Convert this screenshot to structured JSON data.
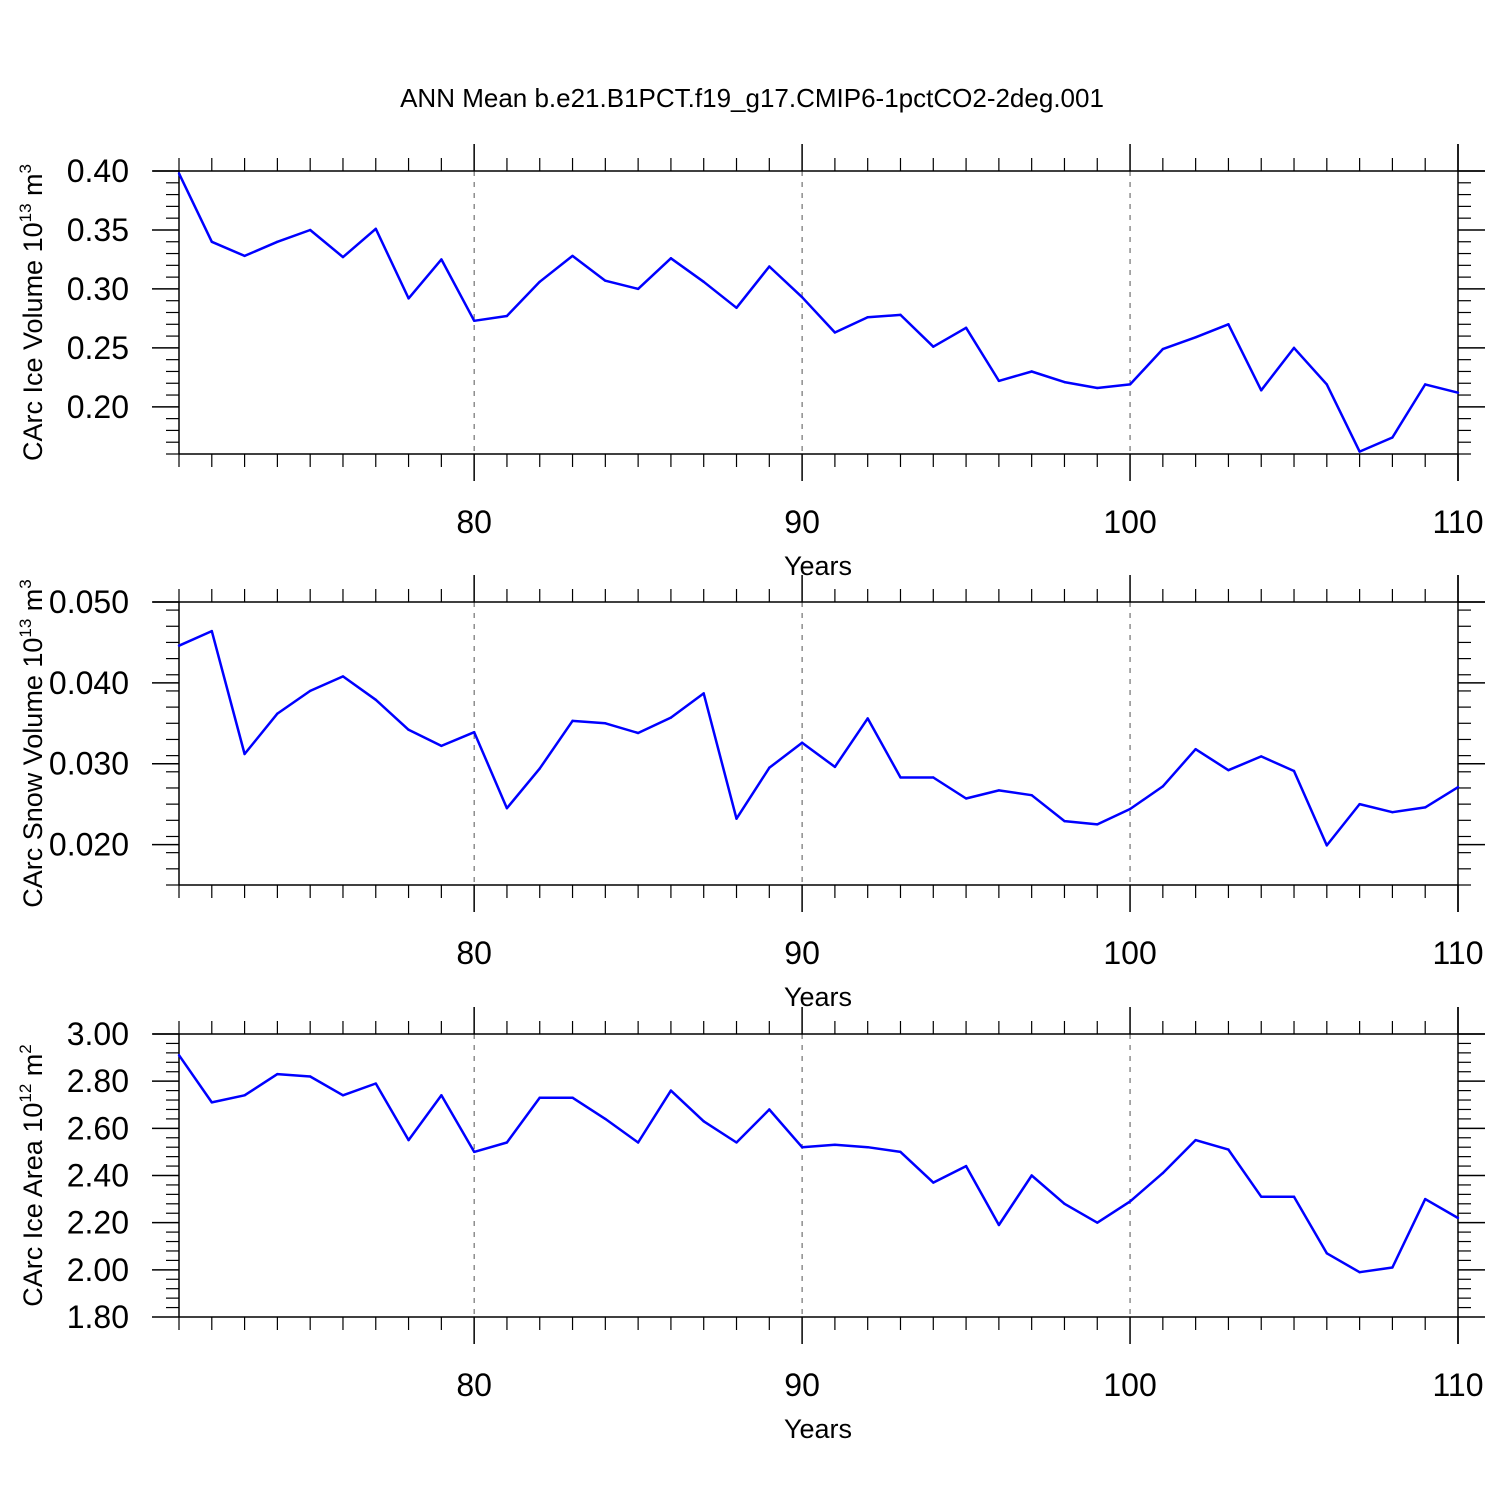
{
  "title": "ANN Mean b.e21.B1PCT.f19_g17.CMIP6-1pctCO2-2deg.001",
  "colors": {
    "line": "#0000ff",
    "axis": "#000000",
    "grid": "#555555"
  },
  "chart_data": [
    {
      "type": "line",
      "ylabel": {
        "text": "CArc Ice Volume 10",
        "exp": "13",
        "unit": " m",
        "unit_exp": "3"
      },
      "xlabel": "Years",
      "xlim": [
        71,
        110
      ],
      "ylim": [
        0.16,
        0.4
      ],
      "yticks": [
        0.2,
        0.25,
        0.3,
        0.35,
        0.4
      ],
      "ytick_labels": [
        "0.20",
        "0.25",
        "0.30",
        "0.35",
        "0.40"
      ],
      "xticks": [
        80,
        90,
        100,
        110
      ],
      "xtick_labels": [
        "80",
        "90",
        "100",
        "110"
      ],
      "grid_x": "dashed at major x ticks",
      "x": [
        71,
        72,
        73,
        74,
        75,
        76,
        77,
        78,
        79,
        80,
        81,
        82,
        83,
        84,
        85,
        86,
        87,
        88,
        89,
        90,
        91,
        92,
        93,
        94,
        95,
        96,
        97,
        98,
        99,
        100,
        101,
        102,
        103,
        104,
        105,
        106,
        107,
        108,
        109,
        110
      ],
      "y": [
        0.398,
        0.34,
        0.328,
        0.34,
        0.35,
        0.327,
        0.351,
        0.292,
        0.325,
        0.273,
        0.277,
        0.306,
        0.328,
        0.307,
        0.3,
        0.326,
        0.306,
        0.284,
        0.319,
        0.293,
        0.263,
        0.276,
        0.278,
        0.251,
        0.267,
        0.222,
        0.23,
        0.221,
        0.216,
        0.219,
        0.249,
        0.259,
        0.27,
        0.214,
        0.25,
        0.219,
        0.162,
        0.174,
        0.219,
        0.212
      ]
    },
    {
      "type": "line",
      "ylabel": {
        "text": "CArc Snow Volume 10",
        "exp": "13",
        "unit": " m",
        "unit_exp": "3"
      },
      "xlabel": "Years",
      "xlim": [
        71,
        110
      ],
      "ylim": [
        0.015,
        0.05
      ],
      "yticks": [
        0.02,
        0.03,
        0.04,
        0.05
      ],
      "ytick_labels": [
        "0.020",
        "0.030",
        "0.040",
        "0.050"
      ],
      "xticks": [
        80,
        90,
        100,
        110
      ],
      "xtick_labels": [
        "80",
        "90",
        "100",
        "110"
      ],
      "grid_x": "dashed at major x ticks",
      "x": [
        71,
        72,
        73,
        74,
        75,
        76,
        77,
        78,
        79,
        80,
        81,
        82,
        83,
        84,
        85,
        86,
        87,
        88,
        89,
        90,
        91,
        92,
        93,
        94,
        95,
        96,
        97,
        98,
        99,
        100,
        101,
        102,
        103,
        104,
        105,
        106,
        107,
        108,
        109,
        110
      ],
      "y": [
        0.0446,
        0.0464,
        0.0312,
        0.0362,
        0.039,
        0.0408,
        0.0379,
        0.0342,
        0.0322,
        0.0339,
        0.0245,
        0.0294,
        0.0353,
        0.035,
        0.0338,
        0.0357,
        0.0387,
        0.0232,
        0.0295,
        0.0326,
        0.0296,
        0.0356,
        0.0283,
        0.0283,
        0.0257,
        0.0267,
        0.0261,
        0.0229,
        0.0225,
        0.0244,
        0.0272,
        0.0318,
        0.0292,
        0.0309,
        0.0291,
        0.0199,
        0.025,
        0.024,
        0.0246,
        0.0271
      ]
    },
    {
      "type": "line",
      "ylabel": {
        "text": "CArc Ice Area 10",
        "exp": "12",
        "unit": " m",
        "unit_exp": "2"
      },
      "xlabel": "Years",
      "xlim": [
        71,
        110
      ],
      "ylim": [
        1.8,
        3.0
      ],
      "yticks": [
        1.8,
        2.0,
        2.2,
        2.4,
        2.6,
        2.8,
        3.0
      ],
      "ytick_labels": [
        "1.80",
        "2.00",
        "2.20",
        "2.40",
        "2.60",
        "2.80",
        "3.00"
      ],
      "xticks": [
        80,
        90,
        100,
        110
      ],
      "xtick_labels": [
        "80",
        "90",
        "100",
        "110"
      ],
      "grid_x": "dashed at major x ticks",
      "x": [
        71,
        72,
        73,
        74,
        75,
        76,
        77,
        78,
        79,
        80,
        81,
        82,
        83,
        84,
        85,
        86,
        87,
        88,
        89,
        90,
        91,
        92,
        93,
        94,
        95,
        96,
        97,
        98,
        99,
        100,
        101,
        102,
        103,
        104,
        105,
        106,
        107,
        108,
        109,
        110
      ],
      "y": [
        2.91,
        2.71,
        2.74,
        2.83,
        2.82,
        2.74,
        2.79,
        2.55,
        2.74,
        2.5,
        2.54,
        2.73,
        2.73,
        2.64,
        2.54,
        2.76,
        2.63,
        2.54,
        2.68,
        2.52,
        2.53,
        2.52,
        2.5,
        2.37,
        2.44,
        2.19,
        2.4,
        2.28,
        2.2,
        2.29,
        2.41,
        2.55,
        2.51,
        2.31,
        2.31,
        2.07,
        1.99,
        2.01,
        2.3,
        2.22
      ]
    }
  ]
}
